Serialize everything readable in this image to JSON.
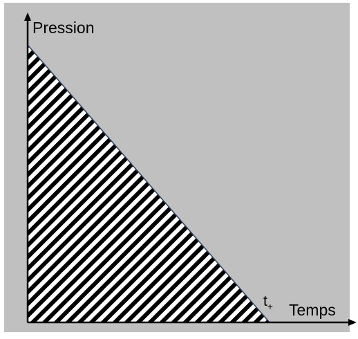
{
  "y_axis_label": "Pression",
  "x_axis_label": "Temps",
  "t_label": {
    "base": "t",
    "sub": "+"
  }
}
